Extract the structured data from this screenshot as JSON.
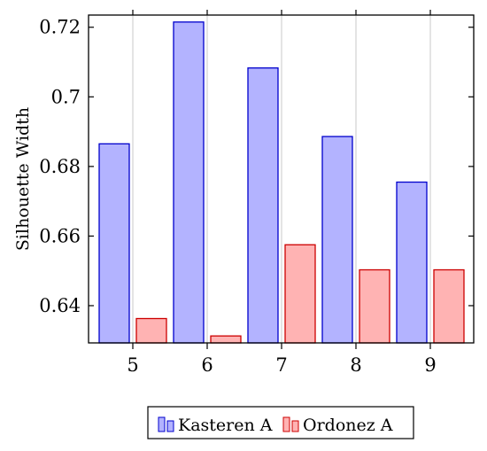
{
  "chart_data": {
    "type": "bar",
    "title": "",
    "xlabel": "",
    "ylabel": "Silhouette Width",
    "categories": [
      "5",
      "6",
      "7",
      "8",
      "9"
    ],
    "series": [
      {
        "name": "Kasteren A",
        "values": [
          0.6865,
          0.7215,
          0.7083,
          0.6886,
          0.6755
        ],
        "fill": "#b3b3ff",
        "stroke": "#0000cc"
      },
      {
        "name": "Ordonez A",
        "values": [
          0.6363,
          0.6313,
          0.6575,
          0.6503,
          0.6503
        ],
        "fill": "#ffb3b3",
        "stroke": "#cc0000"
      }
    ],
    "ylim": [
      0.6293,
      0.7235
    ],
    "yticks": [
      0.64,
      0.66,
      0.68,
      0.7,
      0.72
    ],
    "ytick_labels": [
      "0.64",
      "0.66",
      "0.68",
      "0.7",
      "0.72"
    ],
    "grid": "vertical",
    "legend_position": "bottom"
  }
}
